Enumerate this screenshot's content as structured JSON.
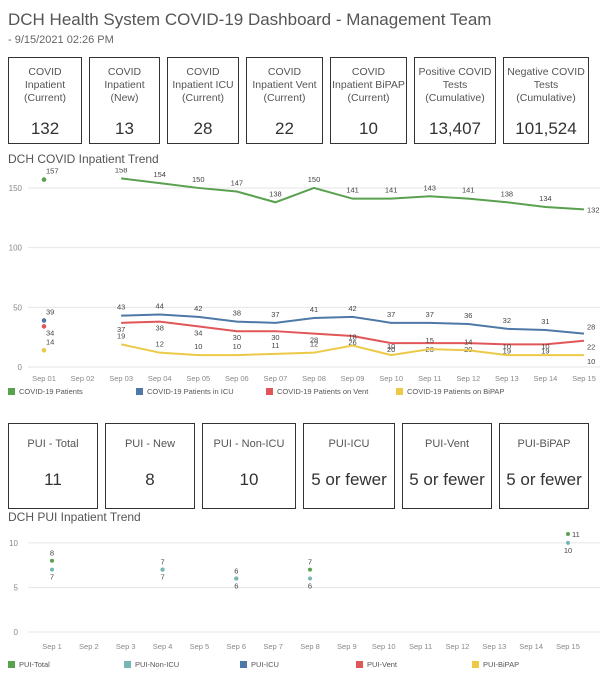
{
  "header": {
    "title": "DCH Health System COVID-19 Dashboard - Management Team",
    "subtitle": "- 9/15/2021 02:26 PM"
  },
  "kpis_top": [
    {
      "label": "COVID\nInpatient\n(Current)",
      "value": "132"
    },
    {
      "label": "COVID\nInpatient\n(New)",
      "value": "13"
    },
    {
      "label": "COVID\nInpatient ICU\n(Current)",
      "value": "28"
    },
    {
      "label": "COVID\nInpatient Vent\n(Current)",
      "value": "22"
    },
    {
      "label": "COVID\nInpatient BiPAP\n(Current)",
      "value": "10"
    },
    {
      "label": "Positive COVID\nTests\n(Cumulative)",
      "value": "13,407"
    },
    {
      "label": "Negative COVID\nTests\n(Cumulative)",
      "value": "101,524"
    }
  ],
  "kpis_pui": [
    {
      "label": "PUI - Total",
      "value": "11"
    },
    {
      "label": "PUI - New",
      "value": "8"
    },
    {
      "label": "PUI - Non-ICU",
      "value": "10"
    },
    {
      "label": "PUI-ICU",
      "value": "5 or fewer"
    },
    {
      "label": "PUI-Vent",
      "value": "5 or fewer"
    },
    {
      "label": "PUI-BiPAP",
      "value": "5 or fewer"
    }
  ],
  "sections": {
    "inpatient_trend": "DCH COVID Inpatient Trend",
    "pui_trend": "DCH PUI Inpatient Trend"
  },
  "colors": {
    "green": "#59A14F",
    "blue": "#4E79A7",
    "red": "#E15759",
    "yellow": "#EDC948",
    "teal": "#76B7B2",
    "grid": "#E6E6E6",
    "axis_text": "#888888"
  },
  "chart_data": [
    {
      "type": "line",
      "title": "DCH COVID Inpatient Trend",
      "categories": [
        "Sep 01",
        "Sep 02",
        "Sep 03",
        "Sep 04",
        "Sep 05",
        "Sep 06",
        "Sep 07",
        "Sep 08",
        "Sep 09",
        "Sep 10",
        "Sep 11",
        "Sep 12",
        "Sep 13",
        "Sep 14",
        "Sep 15"
      ],
      "ylim": [
        0,
        160
      ],
      "yticks": [
        0,
        50,
        100,
        150
      ],
      "series": [
        {
          "name": "COVID-19 Patients",
          "color": "#59A14F",
          "values": [
            157,
            null,
            158,
            154,
            150,
            147,
            138,
            150,
            141,
            141,
            143,
            141,
            138,
            134,
            132
          ]
        },
        {
          "name": "COVID-19 Patients in ICU",
          "color": "#4E79A7",
          "values": [
            39,
            null,
            43,
            44,
            42,
            38,
            37,
            41,
            42,
            37,
            37,
            36,
            32,
            31,
            28
          ]
        },
        {
          "name": "COVID-19 Patients on Vent",
          "color": "#E15759",
          "values": [
            34,
            null,
            37,
            38,
            34,
            30,
            30,
            28,
            26,
            20,
            20,
            20,
            19,
            19,
            22
          ]
        },
        {
          "name": "COVID-19 Patients on BiPAP",
          "color": "#EDC948",
          "values": [
            14,
            null,
            19,
            12,
            10,
            10,
            11,
            12,
            18,
            10,
            15,
            14,
            10,
            10,
            10
          ]
        }
      ]
    },
    {
      "type": "scatter",
      "title": "DCH PUI Inpatient Trend",
      "categories": [
        "Sep 1",
        "Sep 2",
        "Sep 3",
        "Sep 4",
        "Sep 5",
        "Sep 6",
        "Sep 7",
        "Sep 8",
        "Sep 9",
        "Sep 10",
        "Sep 11",
        "Sep 12",
        "Sep 13",
        "Sep 14",
        "Sep 15"
      ],
      "ylim": [
        0,
        11
      ],
      "yticks": [
        0,
        5,
        10
      ],
      "series": [
        {
          "name": "PUI-Total",
          "color": "#59A14F",
          "values": [
            8,
            null,
            null,
            7,
            null,
            6,
            null,
            7,
            null,
            null,
            null,
            null,
            null,
            null,
            11
          ]
        },
        {
          "name": "PUI-Non-ICU",
          "color": "#76B7B2",
          "values": [
            7,
            null,
            null,
            7,
            null,
            6,
            null,
            6,
            null,
            null,
            null,
            null,
            null,
            null,
            10
          ]
        },
        {
          "name": "PUI-ICU",
          "color": "#4E79A7",
          "values": [
            null,
            null,
            null,
            null,
            null,
            null,
            null,
            null,
            null,
            null,
            null,
            null,
            null,
            null,
            null
          ]
        },
        {
          "name": "PUI-Vent",
          "color": "#E15759",
          "values": [
            null,
            null,
            null,
            null,
            null,
            null,
            null,
            null,
            null,
            null,
            null,
            null,
            null,
            null,
            null
          ]
        },
        {
          "name": "PUI-BiPAP",
          "color": "#EDC948",
          "values": [
            null,
            null,
            null,
            null,
            null,
            null,
            null,
            null,
            null,
            null,
            null,
            null,
            null,
            null,
            null
          ]
        }
      ]
    }
  ]
}
